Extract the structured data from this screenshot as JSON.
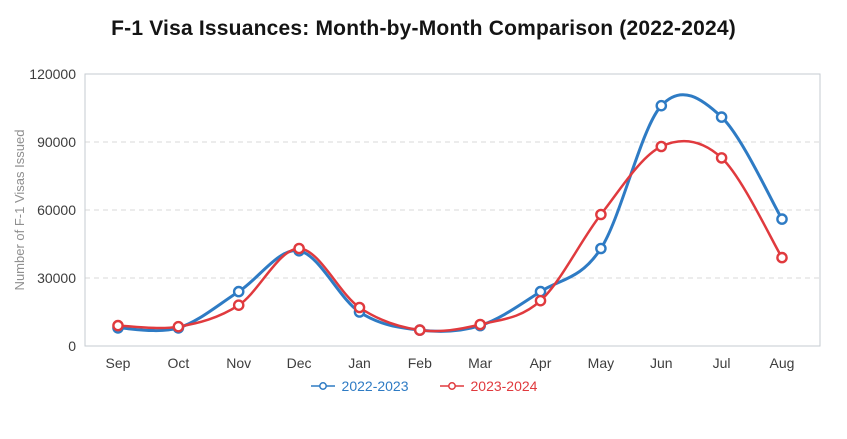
{
  "chart_data": {
    "type": "line",
    "title": "F-1 Visa Issuances: Month-by-Month Comparison (2022-2024)",
    "xlabel": "",
    "ylabel": "Number of F-1 Visas Issued",
    "categories": [
      "Sep",
      "Oct",
      "Nov",
      "Dec",
      "Jan",
      "Feb",
      "Mar",
      "Apr",
      "May",
      "Jun",
      "Jul",
      "Aug"
    ],
    "ylim": [
      0,
      120000
    ],
    "yticks": [
      0,
      30000,
      60000,
      90000,
      120000
    ],
    "grid": true,
    "grid_style": "dashed",
    "legend_position": "bottom",
    "marker": "open-circle",
    "series": [
      {
        "name": "2022-2023",
        "color": "#2e7bc4",
        "values": [
          8000,
          8000,
          24000,
          42000,
          15000,
          7000,
          9000,
          24000,
          43000,
          106000,
          101000,
          56000
        ]
      },
      {
        "name": "2023-2024",
        "color": "#e03a3e",
        "values": [
          9000,
          8500,
          18000,
          43000,
          17000,
          7000,
          9500,
          20000,
          58000,
          88000,
          83000,
          39000
        ]
      }
    ]
  }
}
